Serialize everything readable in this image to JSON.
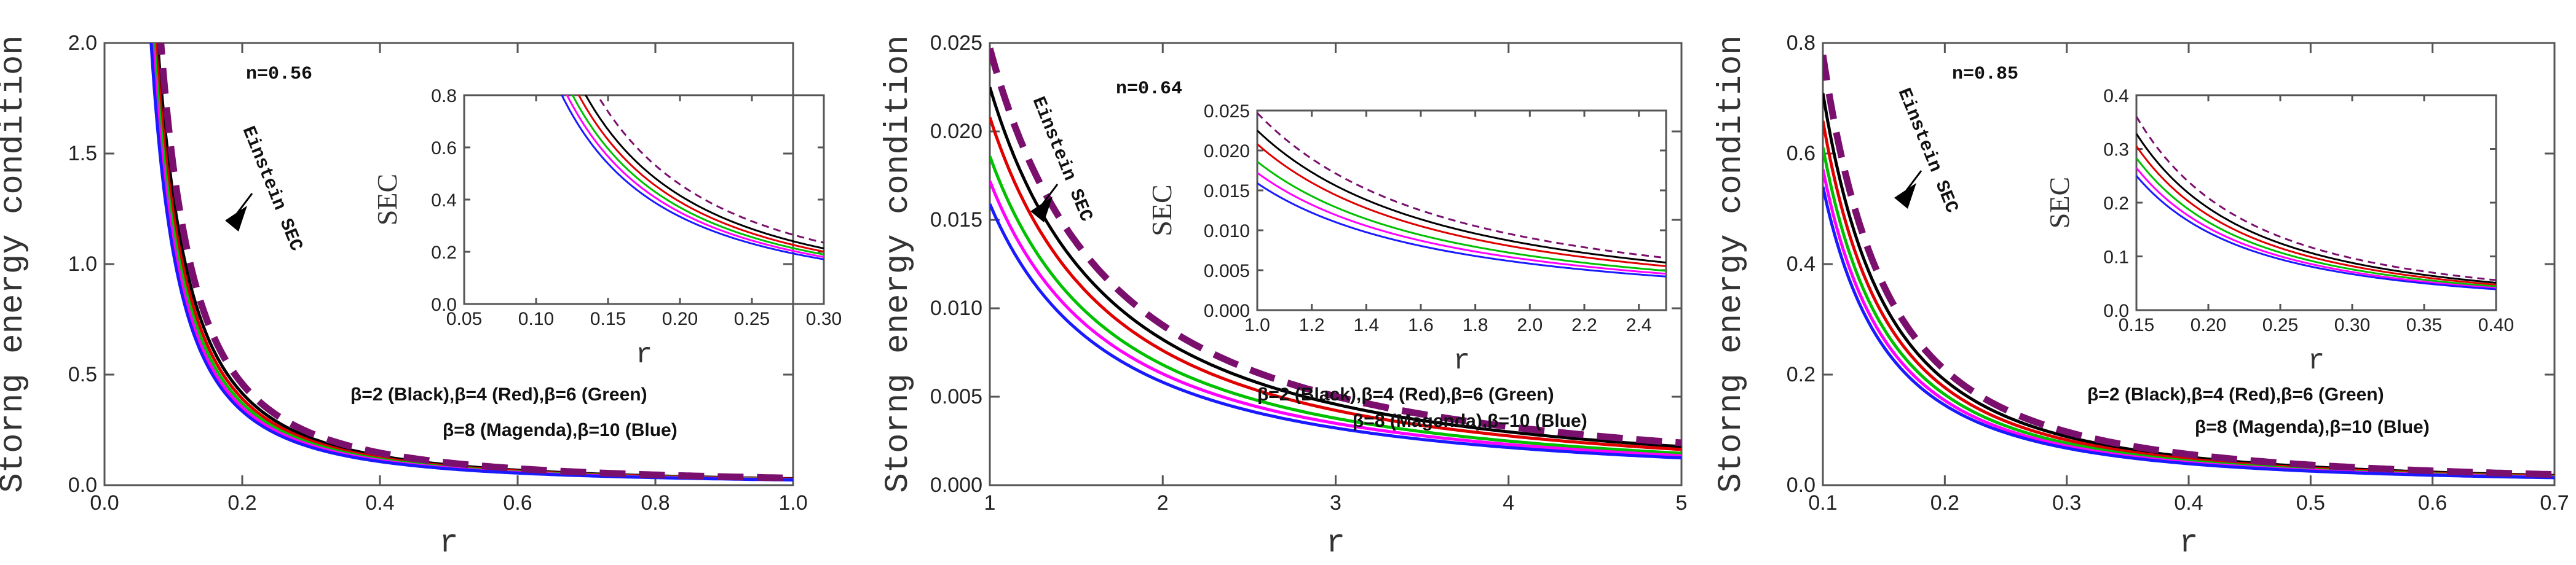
{
  "chart_data": [
    {
      "type": "line",
      "panel": "left",
      "title": "",
      "xlabel": "r",
      "ylabel": "Storng energy condition",
      "xlim": [
        0.0,
        1.0
      ],
      "ylim": [
        0.0,
        2.0
      ],
      "xticks": [
        "0.0",
        "0.2",
        "0.4",
        "0.6",
        "0.8",
        "1.0"
      ],
      "yticks": [
        "0.0",
        "0.5",
        "1.0",
        "1.5",
        "2.0"
      ],
      "n_label": "n=0.56",
      "einstein_label": "Einstein SEC",
      "legend_line1": "β=2 (Black),β=4 (Red),β=6 (Green)",
      "legend_line2": "β=8 (Magenda),β=10 (Blue)",
      "series": [
        {
          "name": "β=2",
          "color": "#000000",
          "a": 0.0292,
          "p": 1.65
        },
        {
          "name": "β=4",
          "color": "#e00000",
          "a": 0.0275,
          "p": 1.65
        },
        {
          "name": "β=6",
          "color": "#00c000",
          "a": 0.026,
          "p": 1.65
        },
        {
          "name": "β=8",
          "color": "#ff00ff",
          "a": 0.0247,
          "p": 1.65
        },
        {
          "name": "β=10",
          "color": "#1a1aff",
          "a": 0.0235,
          "p": 1.65
        },
        {
          "name": "Einstein SEC",
          "color": "#7a0f6e",
          "a": 0.0322,
          "p": 1.65,
          "dashed": true
        }
      ],
      "inset": {
        "xlabel": "r",
        "ylabel": "SEC",
        "xlim": [
          0.05,
          0.3
        ],
        "ylim": [
          0.0,
          0.8
        ],
        "xticks": [
          "0.05",
          "0.10",
          "0.15",
          "0.20",
          "0.25",
          "0.30"
        ],
        "yticks": [
          "0.0",
          "0.2",
          "0.4",
          "0.6",
          "0.8"
        ]
      }
    },
    {
      "type": "line",
      "panel": "middle",
      "title": "",
      "xlabel": "r",
      "ylabel": "Storng energy condition",
      "xlim": [
        1,
        5
      ],
      "ylim": [
        0.0,
        0.025
      ],
      "xticks": [
        "1",
        "2",
        "3",
        "4",
        "5"
      ],
      "yticks": [
        "0.000",
        "0.005",
        "0.010",
        "0.015",
        "0.020",
        "0.025"
      ],
      "n_label": "n=0.64",
      "einstein_label": "Einstein SEC",
      "legend_line1": "β=2 (Black),β=4 (Red),β=6 (Green)",
      "legend_line2": "β=8 (Magenda),β=10 (Blue)",
      "series": [
        {
          "name": "β=2",
          "color": "#000000",
          "a": 0.0225,
          "p": 1.45
        },
        {
          "name": "β=4",
          "color": "#e00000",
          "a": 0.0208,
          "p": 1.45
        },
        {
          "name": "β=6",
          "color": "#00c000",
          "a": 0.0186,
          "p": 1.45
        },
        {
          "name": "β=8",
          "color": "#ff00ff",
          "a": 0.0172,
          "p": 1.45
        },
        {
          "name": "β=10",
          "color": "#1a1aff",
          "a": 0.0159,
          "p": 1.45
        },
        {
          "name": "Einstein SEC",
          "color": "#7a0f6e",
          "a": 0.0247,
          "p": 1.45,
          "dashed": true
        }
      ],
      "inset": {
        "xlabel": "r",
        "ylabel": "SEC",
        "xlim": [
          1.0,
          2.5
        ],
        "ylim": [
          0.0,
          0.025
        ],
        "xticks": [
          "1.0",
          "1.2",
          "1.4",
          "1.6",
          "1.8",
          "2.0",
          "2.2",
          "2.4"
        ],
        "yticks": [
          "0.000",
          "0.005",
          "0.010",
          "0.015",
          "0.020",
          "0.025"
        ]
      }
    },
    {
      "type": "line",
      "panel": "right",
      "title": "",
      "xlabel": "r",
      "ylabel": "Storng energy condition",
      "xlim": [
        0.1,
        0.7
      ],
      "ylim": [
        0.0,
        0.8
      ],
      "xticks": [
        "0.1",
        "0.2",
        "0.3",
        "0.4",
        "0.5",
        "0.6",
        "0.7"
      ],
      "yticks": [
        "0.0",
        "0.2",
        "0.4",
        "0.6",
        "0.8"
      ],
      "n_label": "n=0.85",
      "einstein_label": "Einstein SEC",
      "legend_line1": "β=2 (Black),β=4 (Red),β=6 (Green)",
      "legend_line2": "β=8 (Magenda),β=10 (Blue)",
      "series": [
        {
          "name": "β=2",
          "color": "#000000",
          "a": 0.00893,
          "p": 1.9
        },
        {
          "name": "β=4",
          "color": "#e00000",
          "a": 0.0083,
          "p": 1.9
        },
        {
          "name": "β=6",
          "color": "#00c000",
          "a": 0.0077,
          "p": 1.9
        },
        {
          "name": "β=8",
          "color": "#ff00ff",
          "a": 0.0072,
          "p": 1.9
        },
        {
          "name": "β=10",
          "color": "#1a1aff",
          "a": 0.0068,
          "p": 1.9
        },
        {
          "name": "Einstein SEC",
          "color": "#7a0f6e",
          "a": 0.0098,
          "p": 1.9,
          "dashed": true
        }
      ],
      "inset": {
        "xlabel": "r",
        "ylabel": "SEC",
        "xlim": [
          0.15,
          0.4
        ],
        "ylim": [
          0.0,
          0.4
        ],
        "xticks": [
          "0.15",
          "0.20",
          "0.25",
          "0.30",
          "0.35",
          "0.40"
        ],
        "yticks": [
          "0.0",
          "0.1",
          "0.2",
          "0.3",
          "0.4"
        ]
      }
    }
  ]
}
